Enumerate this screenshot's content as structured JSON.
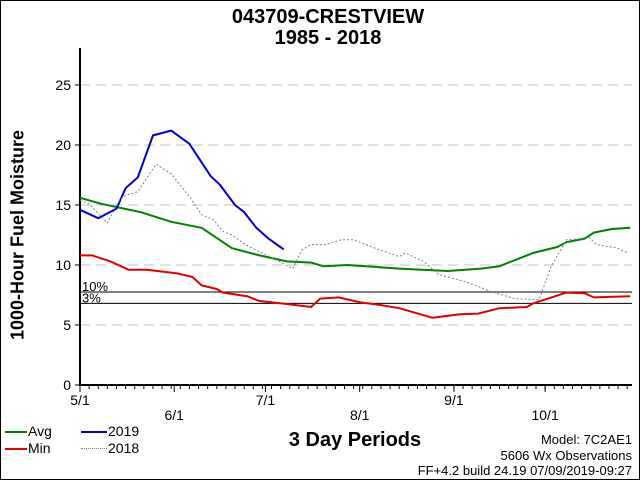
{
  "chart_data": {
    "type": "line",
    "title": "043709-CRESTVIEW",
    "subtitle": "1985 - 2018",
    "xlabel": "3 Day Periods",
    "ylabel": "1000-Hour Fuel Moisture",
    "ylim": [
      0,
      25
    ],
    "yticks": [
      "0",
      "5",
      "10",
      "15",
      "20",
      "25"
    ],
    "xticks": [
      "5/1",
      "6/1",
      "7/1",
      "8/1",
      "9/1",
      "10/1"
    ],
    "xrange": [
      "5/1",
      "10/29"
    ],
    "grid": "horizontal dashed",
    "thresholds": [
      {
        "label": "10%",
        "value": 7.75
      },
      {
        "label": "3%",
        "value": 6.8
      }
    ],
    "series": [
      {
        "name": "Avg",
        "color": "#008000",
        "style": "solid",
        "points": [
          [
            "5/1",
            15.6
          ],
          [
            "5/8",
            15.1
          ],
          [
            "5/21",
            14.4
          ],
          [
            "5/31",
            13.6
          ],
          [
            "6/10",
            13.1
          ],
          [
            "6/20",
            11.4
          ],
          [
            "6/29",
            10.8
          ],
          [
            "7/8",
            10.3
          ],
          [
            "7/16",
            10.2
          ],
          [
            "7/20",
            9.9
          ],
          [
            "7/28",
            10.0
          ],
          [
            "8/14",
            9.7
          ],
          [
            "8/30",
            9.5
          ],
          [
            "9/10",
            9.7
          ],
          [
            "9/16",
            9.9
          ],
          [
            "9/27",
            11.0
          ],
          [
            "10/5",
            11.5
          ],
          [
            "10/8",
            11.9
          ],
          [
            "10/14",
            12.2
          ],
          [
            "10/17",
            12.7
          ],
          [
            "10/23",
            13.0
          ],
          [
            "10/29",
            13.1
          ]
        ]
      },
      {
        "name": "Min",
        "color": "#e00000",
        "style": "solid",
        "points": [
          [
            "5/1",
            10.8
          ],
          [
            "5/5",
            10.8
          ],
          [
            "5/11",
            10.3
          ],
          [
            "5/17",
            9.6
          ],
          [
            "5/23",
            9.6
          ],
          [
            "6/2",
            9.3
          ],
          [
            "6/7",
            9.0
          ],
          [
            "6/10",
            8.3
          ],
          [
            "6/15",
            8.0
          ],
          [
            "6/17",
            7.7
          ],
          [
            "6/25",
            7.4
          ],
          [
            "6/29",
            7.0
          ],
          [
            "7/8",
            6.75
          ],
          [
            "7/16",
            6.5
          ],
          [
            "7/19",
            7.2
          ],
          [
            "7/25",
            7.3
          ],
          [
            "8/1",
            6.9
          ],
          [
            "8/7",
            6.7
          ],
          [
            "8/14",
            6.4
          ],
          [
            "8/25",
            5.6
          ],
          [
            "9/3",
            5.9
          ],
          [
            "9/9",
            5.95
          ],
          [
            "9/16",
            6.4
          ],
          [
            "9/25",
            6.5
          ],
          [
            "9/27",
            6.8
          ],
          [
            "10/8",
            7.7
          ],
          [
            "10/14",
            7.65
          ],
          [
            "10/17",
            7.3
          ],
          [
            "10/29",
            7.4
          ]
        ]
      },
      {
        "name": "2019",
        "color": "#0000c8",
        "style": "solid",
        "points": [
          [
            "5/1",
            14.6
          ],
          [
            "5/7",
            13.9
          ],
          [
            "5/13",
            14.7
          ],
          [
            "5/16",
            16.4
          ],
          [
            "5/20",
            17.3
          ],
          [
            "5/25",
            20.8
          ],
          [
            "5/31",
            21.2
          ],
          [
            "6/6",
            20.1
          ],
          [
            "6/13",
            17.4
          ],
          [
            "6/16",
            16.7
          ],
          [
            "6/21",
            15.0
          ],
          [
            "6/24",
            14.4
          ],
          [
            "6/28",
            13.1
          ],
          [
            "7/2",
            12.2
          ],
          [
            "7/7",
            11.3
          ]
        ]
      },
      {
        "name": "2018",
        "color": "#808080",
        "style": "dotted",
        "points": [
          [
            "5/1",
            15.4
          ],
          [
            "5/4",
            15.1
          ],
          [
            "5/10",
            13.5
          ],
          [
            "5/14",
            15.4
          ],
          [
            "5/16",
            15.8
          ],
          [
            "5/20",
            16.1
          ],
          [
            "5/26",
            18.4
          ],
          [
            "5/31",
            17.6
          ],
          [
            "6/6",
            15.7
          ],
          [
            "6/10",
            14.2
          ],
          [
            "6/14",
            13.75
          ],
          [
            "6/17",
            12.8
          ],
          [
            "6/20",
            12.5
          ],
          [
            "6/25",
            11.6
          ],
          [
            "6/30",
            11.0
          ],
          [
            "7/7",
            10.1
          ],
          [
            "7/10",
            9.7
          ],
          [
            "7/13",
            11.25
          ],
          [
            "7/16",
            11.7
          ],
          [
            "7/21",
            11.7
          ],
          [
            "7/26",
            12.1
          ],
          [
            "7/30",
            12.1
          ],
          [
            "8/5",
            11.5
          ],
          [
            "8/14",
            10.7
          ],
          [
            "8/16",
            11.0
          ],
          [
            "8/22",
            10.3
          ],
          [
            "8/27",
            9.2
          ],
          [
            "9/5",
            8.6
          ],
          [
            "9/13",
            7.8
          ],
          [
            "9/21",
            7.2
          ],
          [
            "9/29",
            7.1
          ],
          [
            "10/3",
            9.9
          ],
          [
            "10/8",
            12.1
          ],
          [
            "10/13",
            12.2
          ],
          [
            "10/15",
            12.4
          ],
          [
            "10/18",
            11.7
          ],
          [
            "10/25",
            11.4
          ],
          [
            "10/28",
            11.0
          ]
        ]
      }
    ],
    "legend": "bottom-left"
  },
  "info": {
    "model": "Model: 7C2AE1",
    "observations": "5606 Wx Observations",
    "build": "FF+4.2 build 24.19 07/09/2019-09:27"
  }
}
